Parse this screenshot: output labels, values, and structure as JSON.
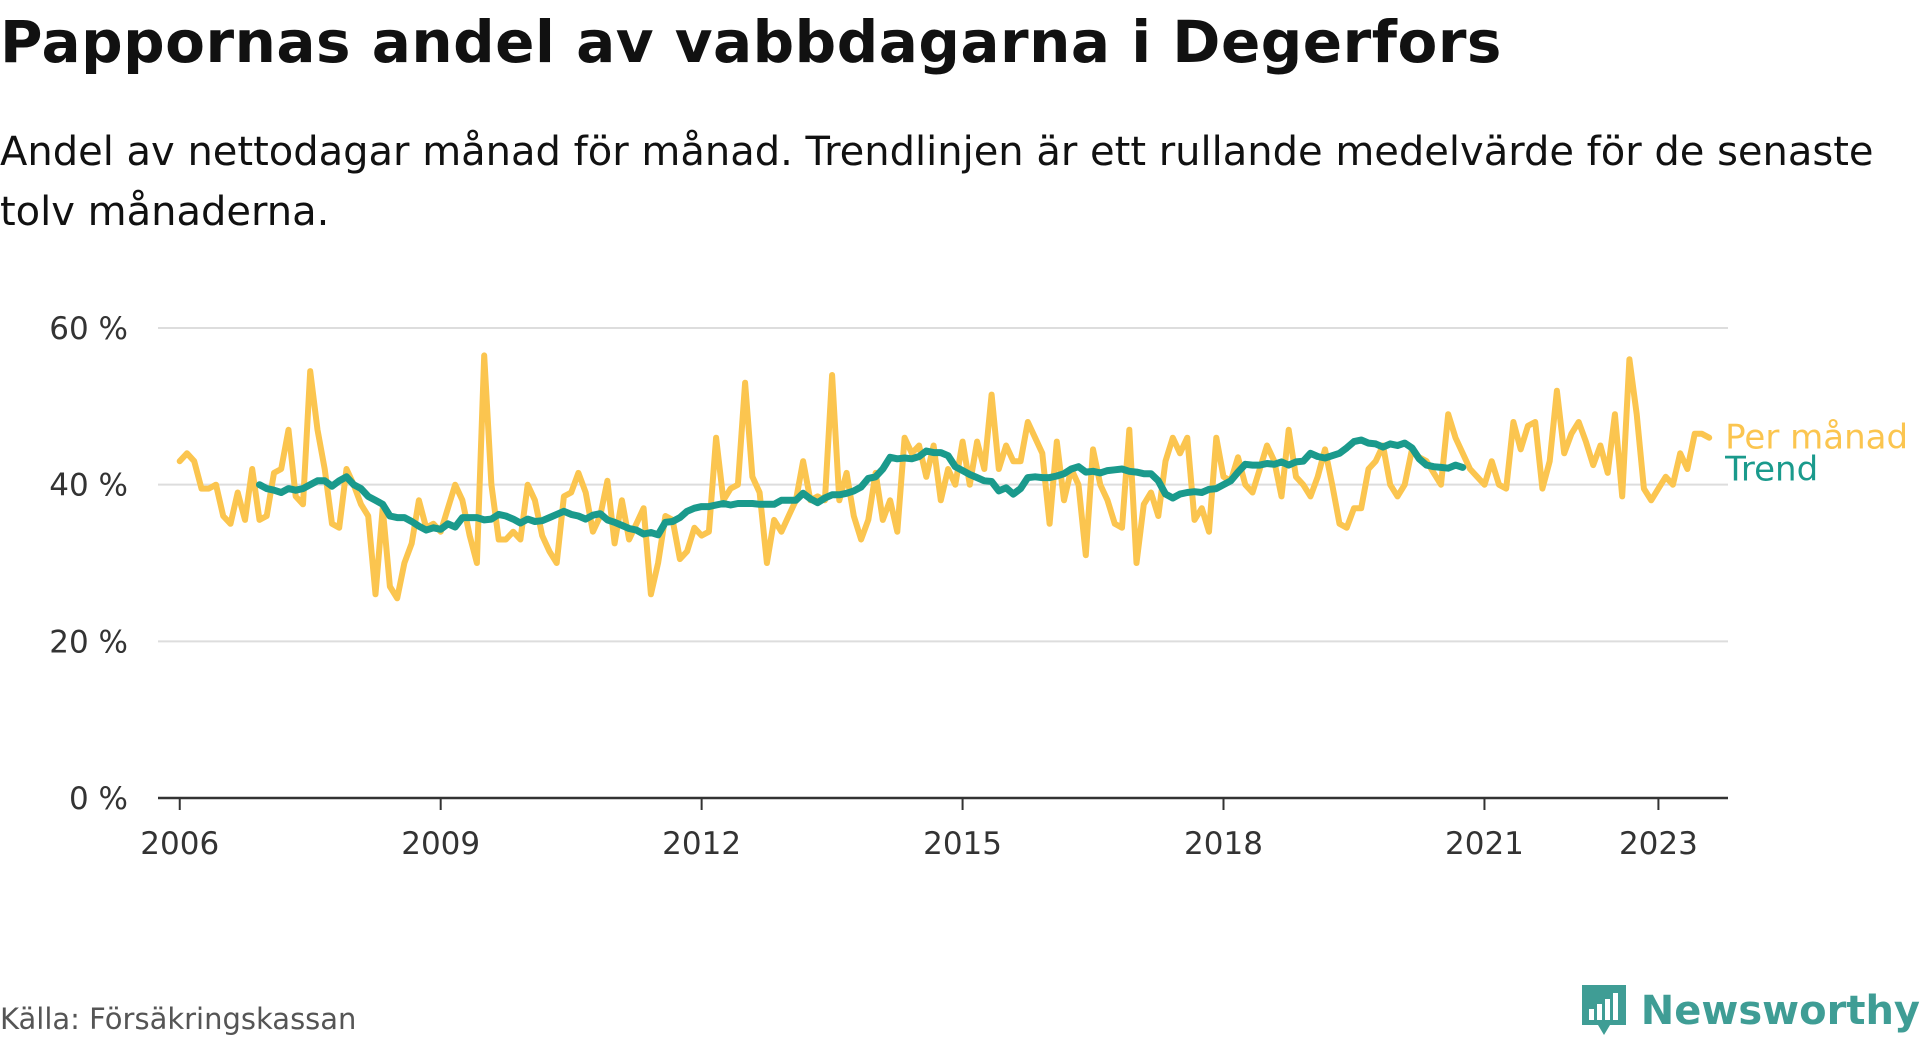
{
  "header": {
    "title": "Pappornas andel av vabbdagarna i Degerfors",
    "subtitle": "Andel av nettodagar månad för månad. Trendlinjen är ett rullande medelvärde för de senaste tolv månaderna."
  },
  "footer": {
    "source": "Källa: Försäkringskassan",
    "brand": "Newsworthy",
    "brand_icon": "bar-chart-icon"
  },
  "colors": {
    "monthly": "#fbc54f",
    "trend": "#1a9a8c",
    "grid": "#dddddd",
    "axis": "#333333",
    "brand": "#3f9d95"
  },
  "chart_data": {
    "type": "line",
    "xlabel": "",
    "ylabel": "",
    "ylim": [
      0,
      60
    ],
    "yticks": [
      0,
      20,
      40,
      60
    ],
    "ytick_labels": [
      "0 %",
      "20 %",
      "40 %",
      "60 %"
    ],
    "xlim": [
      2005.75,
      2023.8
    ],
    "xticks": [
      2006,
      2009,
      2012,
      2015,
      2018,
      2021,
      2023
    ],
    "xtick_labels": [
      "2006",
      "2009",
      "2012",
      "2015",
      "2018",
      "2021",
      "2023"
    ],
    "grid": true,
    "legend": "inline-right",
    "series": [
      {
        "name": "Per månad",
        "start": "2006-01",
        "values": [
          43,
          44,
          43,
          39.5,
          39.5,
          40,
          36,
          35,
          39,
          35.5,
          42,
          35.5,
          36,
          41.5,
          42,
          47,
          38.5,
          37.5,
          54.5,
          47,
          42,
          35,
          34.5,
          42,
          40,
          37.5,
          36,
          26,
          37,
          27,
          25.5,
          30,
          32.5,
          38,
          34.5,
          35,
          34,
          37,
          40,
          38,
          33.5,
          30,
          56.5,
          40,
          33,
          33,
          34,
          33,
          40,
          38,
          33.5,
          31.5,
          30,
          38.5,
          39,
          41.5,
          39,
          34,
          36,
          40.5,
          32.5,
          38,
          33,
          35,
          37,
          26,
          30,
          36,
          35.5,
          30.5,
          31.5,
          34.5,
          33.5,
          34,
          46,
          38,
          39.5,
          40,
          53,
          41,
          39,
          30,
          35.5,
          34,
          36,
          38,
          43,
          38,
          38.5,
          38,
          54,
          38,
          41.5,
          36,
          33,
          35.5,
          41.5,
          35.5,
          38,
          34,
          46,
          44,
          45,
          41,
          45,
          38,
          42,
          40,
          45.5,
          40,
          45.5,
          42,
          51.5,
          42,
          45,
          43,
          43,
          48,
          46,
          44,
          35,
          45.5,
          38,
          42,
          40,
          31,
          44.5,
          40,
          38,
          35,
          34.5,
          47,
          30,
          37.5,
          39,
          36,
          43,
          46,
          44,
          46,
          35.5,
          37,
          34,
          46,
          41,
          40.5,
          43.5,
          40,
          39,
          42,
          45,
          43,
          38.5,
          47,
          41,
          40,
          38.5,
          41,
          44.5,
          40,
          35,
          34.5,
          37,
          37,
          42,
          43,
          45,
          40,
          38.5,
          40,
          44.5,
          43.5,
          43,
          41.5,
          40,
          49,
          46,
          44,
          42,
          41,
          40,
          43,
          40,
          39.5,
          48,
          44.5,
          47.5,
          48,
          39.5,
          43,
          52,
          44,
          46.5,
          48,
          45.5,
          42.5,
          45,
          41.5,
          49,
          38.5,
          56,
          49,
          39.5,
          38,
          39.5,
          41,
          40,
          44,
          42,
          46.5,
          46.5,
          46
        ]
      },
      {
        "name": "Trend",
        "start": "2006-12",
        "values": [
          40,
          39.5,
          39.3,
          39,
          39.5,
          39.3,
          39.5,
          40,
          40.5,
          40.5,
          39.8,
          40.5,
          41,
          40,
          39.5,
          38.5,
          38,
          37.5,
          36,
          35.8,
          35.8,
          35.3,
          34.7,
          34.2,
          34.5,
          34.3,
          35,
          34.6,
          35.8,
          35.8,
          35.8,
          35.5,
          35.6,
          36.2,
          36,
          35.6,
          35.1,
          35.6,
          35.3,
          35.4,
          35.8,
          36.2,
          36.6,
          36.2,
          36,
          35.6,
          36.1,
          36.3,
          35.5,
          35.2,
          34.8,
          34.4,
          34.2,
          33.7,
          33.9,
          33.6,
          35.2,
          35.3,
          35.8,
          36.6,
          37,
          37.2,
          37.2,
          37.4,
          37.6,
          37.4,
          37.6,
          37.6,
          37.6,
          37.5,
          37.5,
          37.5,
          38,
          38,
          38,
          38.9,
          38.2,
          37.7,
          38.3,
          38.7,
          38.7,
          38.9,
          39.2,
          39.7,
          40.8,
          41,
          42,
          43.5,
          43.3,
          43.4,
          43.3,
          43.6,
          44.3,
          44.1,
          44.1,
          43.7,
          42.3,
          41.8,
          41.3,
          40.9,
          40.5,
          40.4,
          39.2,
          39.6,
          38.8,
          39.5,
          40.9,
          41,
          40.9,
          40.9,
          41.1,
          41.4,
          42,
          42.3,
          41.6,
          41.7,
          41.5,
          41.8,
          41.9,
          42,
          41.7,
          41.6,
          41.4,
          41.4,
          40.5,
          38.8,
          38.3,
          38.8,
          39,
          39.1,
          39,
          39.4,
          39.5,
          40,
          40.5,
          41.6,
          42.6,
          42.5,
          42.5,
          42.7,
          42.6,
          42.9,
          42.5,
          42.9,
          43,
          44,
          43.6,
          43.4,
          43.7,
          44,
          44.7,
          45.5,
          45.7,
          45.3,
          45.2,
          44.8,
          45.2,
          45,
          45.3,
          44.7,
          43.3,
          42.5,
          42.3,
          42.2,
          42.1,
          42.5,
          42.2
        ]
      }
    ]
  }
}
